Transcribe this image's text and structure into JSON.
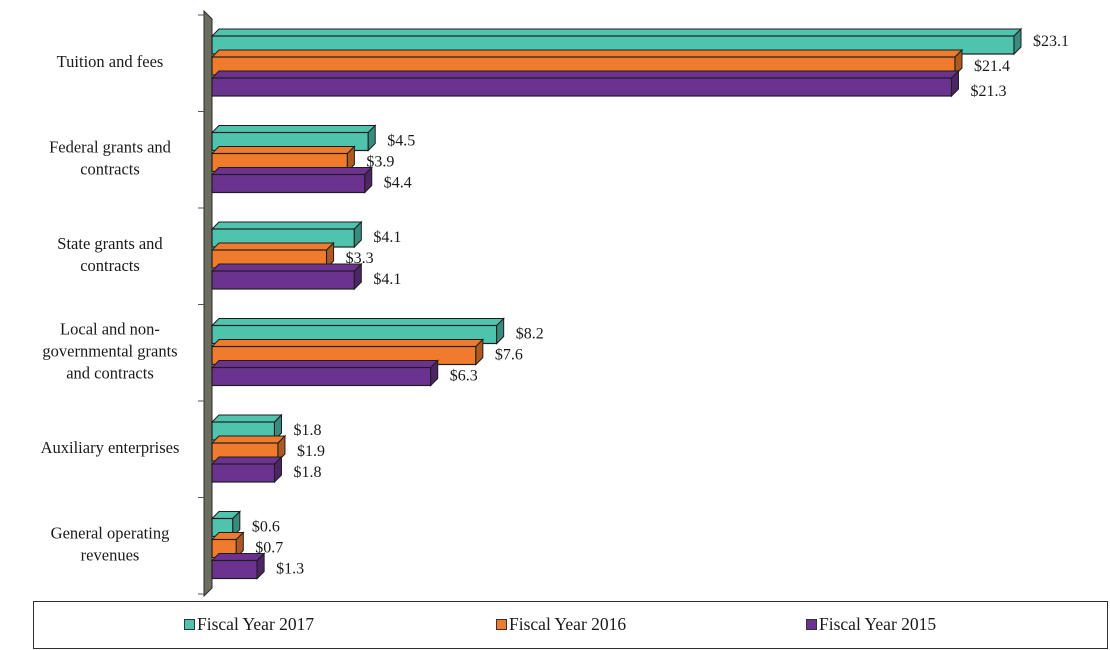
{
  "colors": {
    "fy2017": "#4ec3ad",
    "fy2016": "#f07b2c",
    "fy2015": "#6b338f",
    "wall": "#6e6e60"
  },
  "chart_data": {
    "type": "bar",
    "orientation": "horizontal",
    "categories": [
      [
        "Tuition and fees"
      ],
      [
        "Federal grants and",
        "contracts"
      ],
      [
        "State grants and",
        "contracts"
      ],
      [
        "Local and non-",
        "governmental grants",
        "and contracts"
      ],
      [
        "Auxiliary enterprises"
      ],
      [
        "General operating",
        "revenues"
      ]
    ],
    "series": [
      {
        "name": "Fiscal Year 2017",
        "values": [
          23.1,
          4.5,
          4.1,
          8.2,
          1.8,
          0.6
        ],
        "labels": [
          "$23.1",
          "$4.5",
          "$4.1",
          "$8.2",
          "$1.8",
          "$0.6"
        ]
      },
      {
        "name": "Fiscal Year 2016",
        "values": [
          21.4,
          3.9,
          3.3,
          7.6,
          1.9,
          0.7
        ],
        "labels": [
          "$21.4",
          "$3.9",
          "$3.3",
          "$7.6",
          "$1.9",
          "$0.7"
        ]
      },
      {
        "name": "Fiscal Year 2015",
        "values": [
          21.3,
          4.4,
          4.1,
          6.3,
          1.8,
          1.3
        ],
        "labels": [
          "$21.3",
          "$4.4",
          "$4.1",
          "$6.3",
          "$1.8",
          "$1.3"
        ]
      }
    ],
    "title": "",
    "xlabel": "",
    "ylabel": "",
    "xlim": [
      0,
      23.1
    ],
    "grid": false,
    "legend_position": "bottom",
    "style": "3d"
  }
}
